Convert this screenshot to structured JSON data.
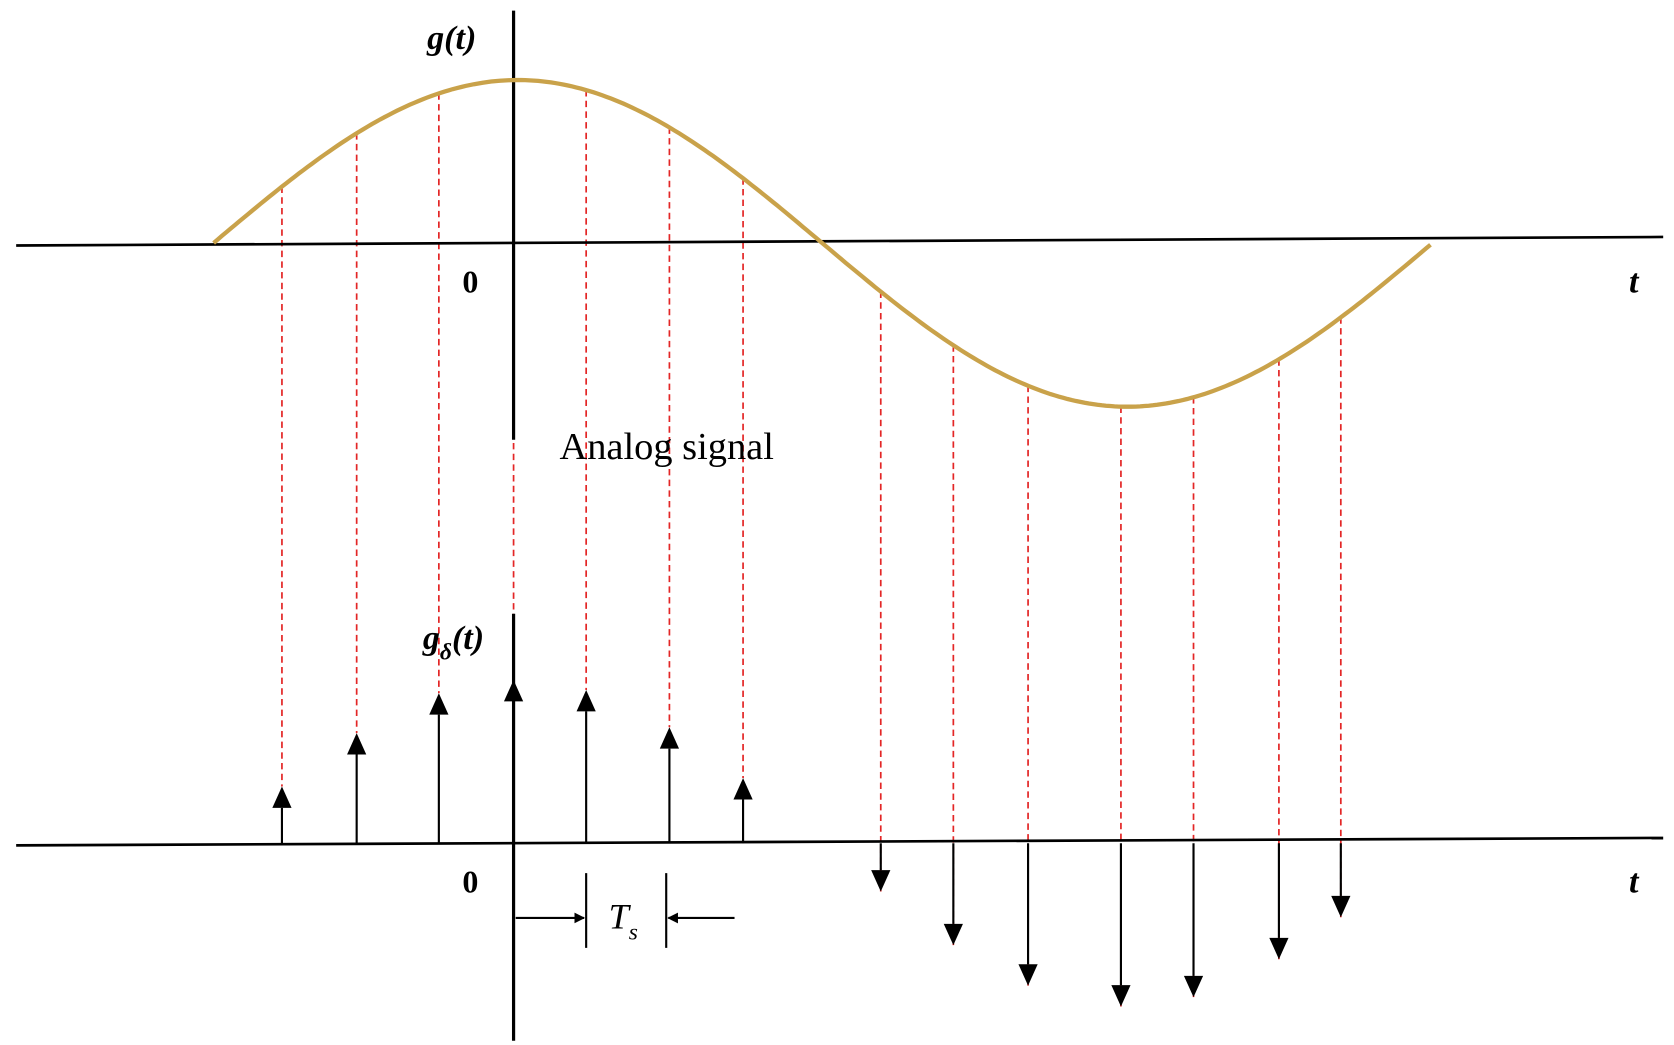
{
  "top_panel": {
    "y_label": "g(t)",
    "origin_label": "0",
    "x_label": "t",
    "caption": "Analog signal"
  },
  "bottom_panel": {
    "y_label": {
      "base": "g",
      "subscript": "δ",
      "suffix": "(t)"
    },
    "origin_label": "0",
    "x_label": "t",
    "interval_label": {
      "base": "T",
      "subscript": "s"
    }
  }
}
